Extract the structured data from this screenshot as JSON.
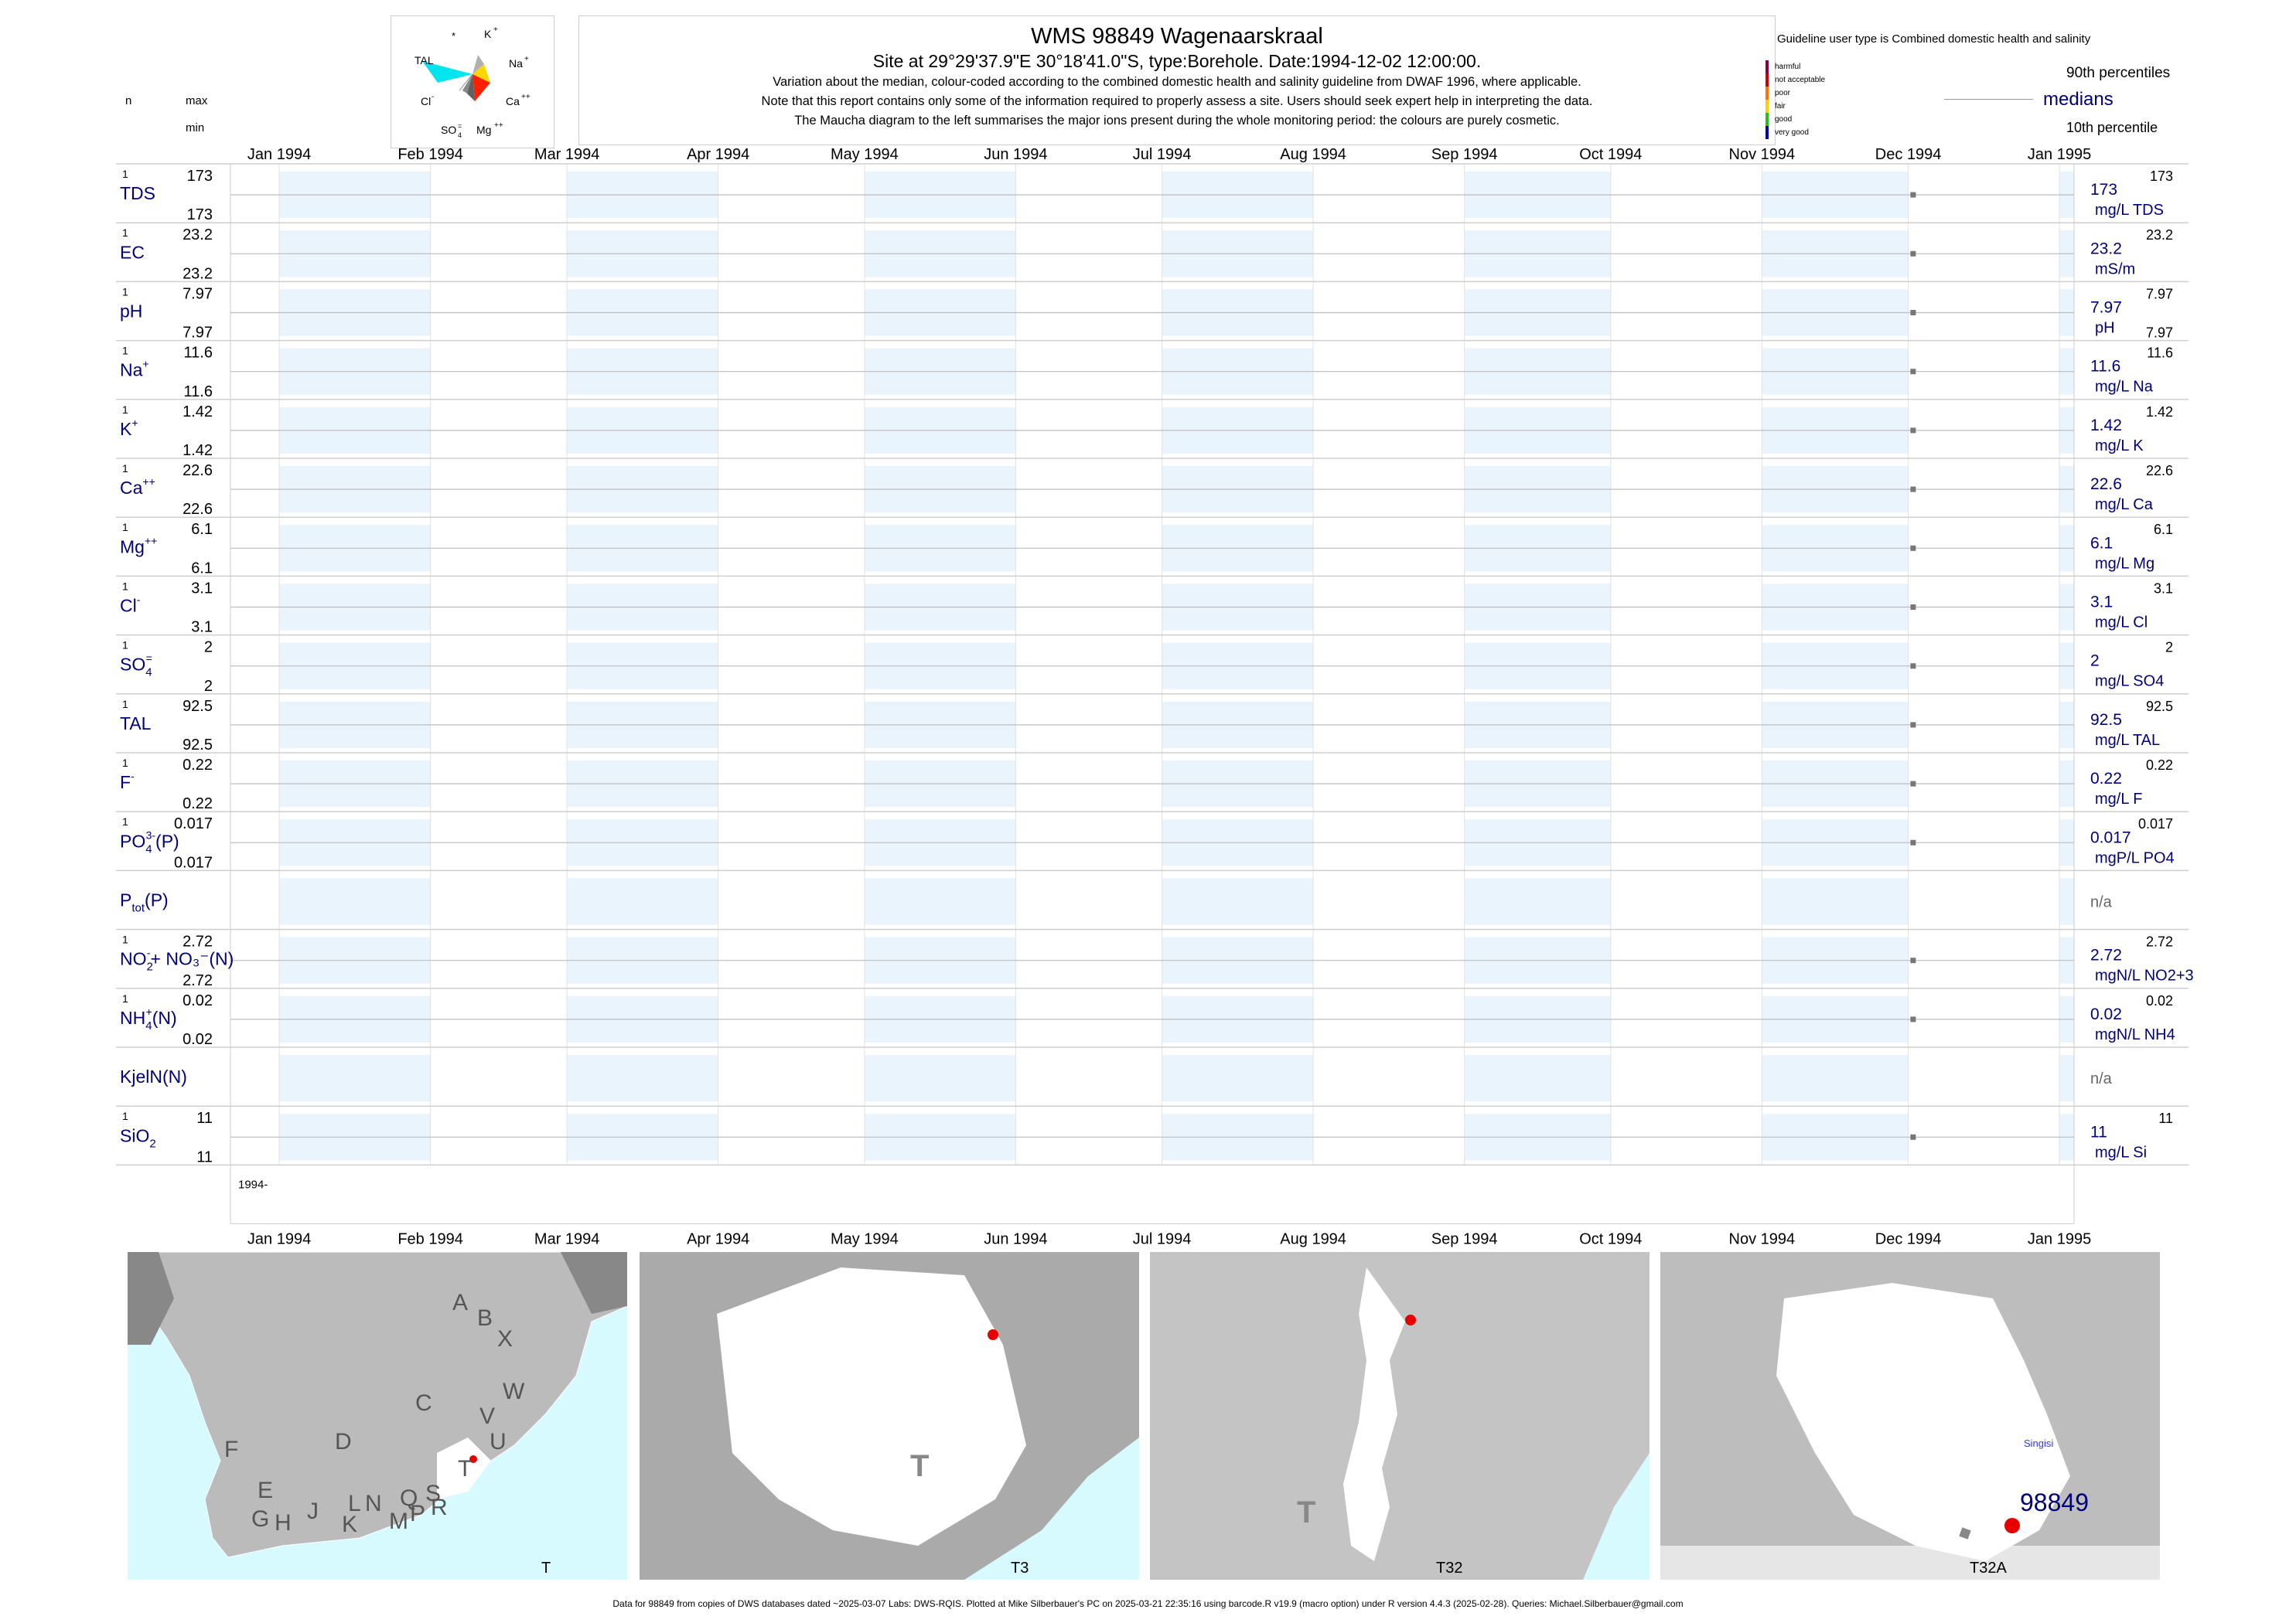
{
  "header": {
    "title": "WMS 98849  Wagenaarskraal",
    "subtitle": "Site at 29°29'37.9\"E 30°18'41.0\"S, type:Borehole. Date:1994-12-02 12:00:00.",
    "note1": "Variation about the median,  colour-coded according to the combined domestic health and salinity guideline from DWAF 1996, where applicable.",
    "note2": "Note that this report contains only some of the information required to properly assess a site. Users should seek expert help in interpreting the data.",
    "note3": "The Maucha diagram to the left summarises the major ions present during the whole monitoring period: the colours are purely cosmetic."
  },
  "maucha": {
    "labels": {
      "star": "*",
      "k": "K",
      "na": "Na",
      "ca": "Ca",
      "mg": "Mg",
      "so4": "SO",
      "cl": "Cl",
      "tal": "TAL"
    },
    "colors": {
      "tal": "#00e5ee",
      "na": "#ffd700",
      "ca": "#ff2000",
      "cl": "#c8c8c8",
      "so4": "#888888",
      "mg": "#606060",
      "k": "#b0b0b0"
    }
  },
  "legend": {
    "guideline_text": "Guideline user type is Combined domestic health and salinity",
    "levels": [
      {
        "label": "harmful",
        "color": "#8b0045"
      },
      {
        "label": "not acceptable",
        "color": "#d00000"
      },
      {
        "label": "poor",
        "color": "#ff7000"
      },
      {
        "label": "fair",
        "color": "#ffd000"
      },
      {
        "label": "good",
        "color": "#20c020"
      },
      {
        "label": "very good",
        "color": "#0000c0"
      }
    ],
    "p90": "90th percentiles",
    "medians": "medians",
    "p10": "10th percentile"
  },
  "columns": {
    "n": "n",
    "max": "max",
    "min": "min"
  },
  "chart_data": {
    "type": "scatter",
    "x_axis": {
      "ticks": [
        "Jan 1994",
        "Feb 1994",
        "Mar 1994",
        "Apr 1994",
        "May 1994",
        "Jun 1994",
        "Jul 1994",
        "Aug 1994",
        "Sep 1994",
        "Oct 1994",
        "Nov 1994",
        "Dec 1994",
        "Jan 1995"
      ],
      "range": [
        "1993-12-22",
        "1995-01-04"
      ],
      "bottom_label": "1994-"
    },
    "sample_date": "1994-12-02",
    "variables": [
      {
        "label": "TDS",
        "sup": "",
        "sub": "",
        "tail": "",
        "n": "1",
        "max": "173",
        "min": "173",
        "value_text": "173",
        "p90": "173",
        "p10": "",
        "unit": "mg/L TDS"
      },
      {
        "label": "EC",
        "sup": "",
        "sub": "",
        "tail": "",
        "n": "1",
        "max": "23.2",
        "min": "23.2",
        "value_text": "23.2",
        "p90": "23.2",
        "p10": "",
        "unit": "mS/m"
      },
      {
        "label": "pH",
        "sup": "",
        "sub": "",
        "tail": "",
        "n": "1",
        "max": "7.97",
        "min": "7.97",
        "value_text": "7.97",
        "p90": "7.97",
        "p10": "7.97",
        "unit": "pH"
      },
      {
        "label": "Na",
        "sup": "+",
        "sub": "",
        "tail": "",
        "n": "1",
        "max": "11.6",
        "min": "11.6",
        "value_text": "11.6",
        "p90": "11.6",
        "p10": "",
        "unit": "mg/L Na"
      },
      {
        "label": "K",
        "sup": "+",
        "sub": "",
        "tail": "",
        "n": "1",
        "max": "1.42",
        "min": "1.42",
        "value_text": "1.42",
        "p90": "1.42",
        "p10": "",
        "unit": "mg/L K"
      },
      {
        "label": "Ca",
        "sup": "++",
        "sub": "",
        "tail": "",
        "n": "1",
        "max": "22.6",
        "min": "22.6",
        "value_text": "22.6",
        "p90": "22.6",
        "p10": "",
        "unit": "mg/L Ca"
      },
      {
        "label": "Mg",
        "sup": "++",
        "sub": "",
        "tail": "",
        "n": "1",
        "max": "6.1",
        "min": "6.1",
        "value_text": "6.1",
        "p90": "6.1",
        "p10": "",
        "unit": "mg/L Mg"
      },
      {
        "label": "Cl",
        "sup": "-",
        "sub": "",
        "tail": "",
        "n": "1",
        "max": "3.1",
        "min": "3.1",
        "value_text": "3.1",
        "p90": "3.1",
        "p10": "",
        "unit": "mg/L Cl"
      },
      {
        "label": "SO",
        "sup": "=",
        "sub": "4",
        "tail": "",
        "n": "1",
        "max": "2",
        "min": "2",
        "value_text": "2",
        "p90": "2",
        "p10": "",
        "unit": "mg/L SO4"
      },
      {
        "label": "TAL",
        "sup": "",
        "sub": "",
        "tail": "",
        "n": "1",
        "max": "92.5",
        "min": "92.5",
        "value_text": "92.5",
        "p90": "92.5",
        "p10": "",
        "unit": "mg/L TAL"
      },
      {
        "label": "F",
        "sup": "-",
        "sub": "",
        "tail": "",
        "n": "1",
        "max": "0.22",
        "min": "0.22",
        "value_text": "0.22",
        "p90": "0.22",
        "p10": "",
        "unit": "mg/L F"
      },
      {
        "label": "PO",
        "sup": "3-",
        "sub": "4",
        "tail": "(P)",
        "n": "1",
        "max": "0.017",
        "min": "0.017",
        "value_text": "0.017",
        "p90": "0.017",
        "p10": "",
        "unit": "mgP/L PO4"
      },
      {
        "label": "P",
        "sup": "",
        "sub": "tot",
        "tail": "(P)",
        "n": "",
        "max": "",
        "min": "",
        "value_text": "n/a",
        "p90": "",
        "p10": "",
        "unit": ""
      },
      {
        "label": "NO",
        "sup": "-",
        "sub": "2",
        "tail": "+ NO₃⁻(N)",
        "n": "1",
        "max": "2.72",
        "min": "2.72",
        "value_text": "2.72",
        "p90": "2.72",
        "p10": "",
        "unit": "mgN/L NO2+3"
      },
      {
        "label": "NH",
        "sup": "+",
        "sub": "4",
        "tail": "(N)",
        "n": "1",
        "max": "0.02",
        "min": "0.02",
        "value_text": "0.02",
        "p90": "0.02",
        "p10": "",
        "unit": "mgN/L NH4"
      },
      {
        "label": "KjelN(N)",
        "sup": "",
        "sub": "",
        "tail": "",
        "n": "",
        "max": "",
        "min": "",
        "value_text": "n/a",
        "p90": "",
        "p10": "",
        "unit": ""
      },
      {
        "label": "SiO",
        "sup": "",
        "sub": "2",
        "tail": "",
        "n": "1",
        "max": "11",
        "min": "11",
        "value_text": "11",
        "p90": "11",
        "p10": "",
        "unit": "mg/L Si"
      }
    ]
  },
  "maps": [
    {
      "caption": "T",
      "regions": [
        "A",
        "B",
        "X",
        "W",
        "C",
        "V",
        "D",
        "U",
        "F",
        "T",
        "E",
        "S",
        "G",
        "H",
        "J",
        "K",
        "L",
        "N",
        "M",
        "Q",
        "P",
        "R"
      ]
    },
    {
      "caption": "T3",
      "region_letter": "T"
    },
    {
      "caption": "T32",
      "region_letter": "T"
    },
    {
      "caption": "T32A",
      "site_label": "98849",
      "town": "Singisi"
    }
  ],
  "footer": "Data for 98849 from copies of DWS databases dated ~2025-03-07 Labs: DWS-RQIS. Plotted at Mike Silberbauer's PC on 2025-03-21 22:35:16 using barcode.R v19.9 (macro option) under R version 4.4.3 (2025-02-28). Queries: Michael.Silberbauer@gmail.com"
}
